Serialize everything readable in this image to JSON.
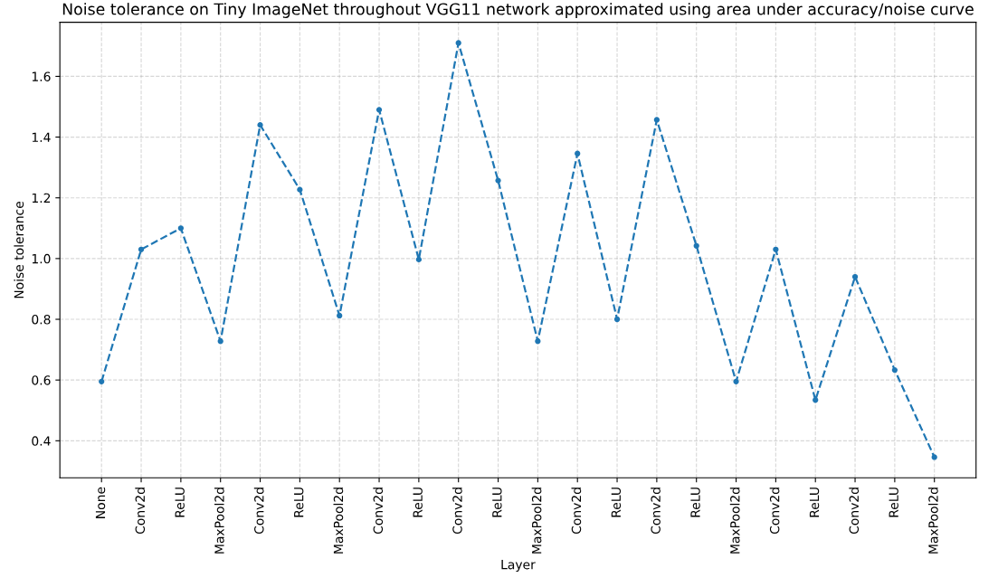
{
  "chart_data": {
    "type": "line",
    "title": "Noise tolerance on Tiny ImageNet throughout VGG11 network approximated using area under accuracy/noise curve",
    "xlabel": "Layer",
    "ylabel": "Noise tolerance",
    "categories": [
      "None",
      "Conv2d",
      "ReLU",
      "MaxPool2d",
      "Conv2d",
      "ReLU",
      "MaxPool2d",
      "Conv2d",
      "ReLU",
      "Conv2d",
      "ReLU",
      "MaxPool2d",
      "Conv2d",
      "ReLU",
      "Conv2d",
      "ReLU",
      "MaxPool2d",
      "Conv2d",
      "ReLU",
      "Conv2d",
      "ReLU",
      "MaxPool2d"
    ],
    "series": [
      {
        "color": "#1f77b4",
        "values": [
          0.595,
          1.03,
          1.1,
          0.728,
          1.44,
          1.227,
          0.812,
          1.49,
          0.997,
          1.71,
          1.257,
          0.728,
          1.346,
          0.8,
          1.457,
          1.042,
          0.595,
          1.03,
          0.534,
          0.94,
          0.633,
          0.346
        ]
      }
    ],
    "ylim": [
      0.278,
      1.778
    ],
    "yticks": [
      {
        "value": 0.4,
        "label": "0.4"
      },
      {
        "value": 0.6,
        "label": "0.6"
      },
      {
        "value": 0.8,
        "label": "0.8"
      },
      {
        "value": 1,
        "label": "1.0"
      },
      {
        "value": 1.2,
        "label": "1.2"
      },
      {
        "value": 1.4,
        "label": "1.4"
      },
      {
        "value": 1.6,
        "label": "1.6"
      }
    ],
    "grid": true,
    "marker": "circle",
    "line_style": "dashed"
  }
}
